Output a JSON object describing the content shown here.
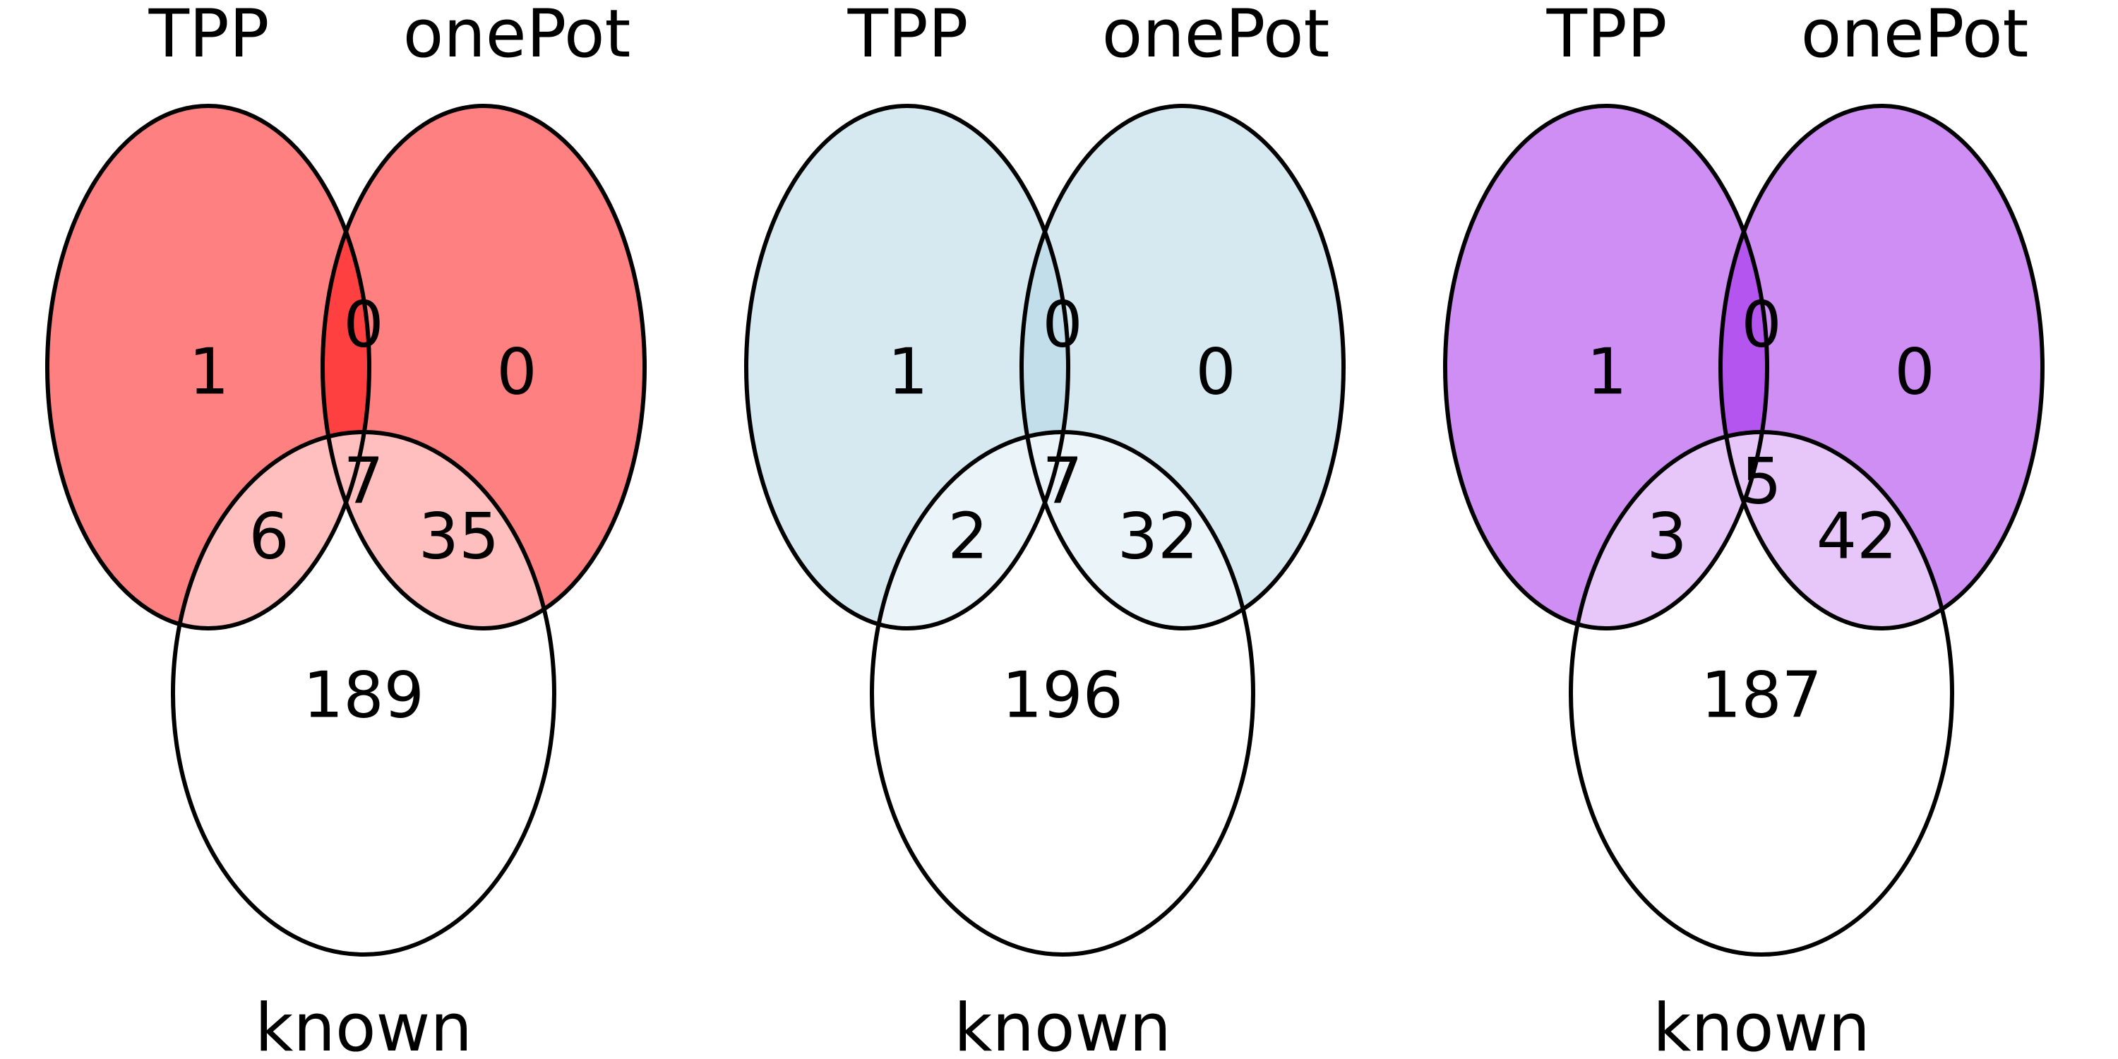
{
  "diagrams": [
    {
      "set_labels": {
        "a": "TPP",
        "b": "onePot",
        "c": "known"
      },
      "colors": {
        "a_only": "#ff8080",
        "ab": "#ff4040",
        "with_c": "#ffbfbf"
      },
      "counts": {
        "a_only": "1",
        "b_only": "0",
        "ab": "0",
        "ac": "6",
        "bc": "35",
        "abc": "7",
        "c_only": "189"
      }
    },
    {
      "set_labels": {
        "a": "TPP",
        "b": "onePot",
        "c": "known"
      },
      "colors": {
        "a_only": "#d6e9f0",
        "ab": "#c2deea",
        "with_c": "#ebf4f8"
      },
      "counts": {
        "a_only": "1",
        "b_only": "0",
        "ab": "0",
        "ac": "2",
        "bc": "32",
        "abc": "7",
        "c_only": "196"
      }
    },
    {
      "set_labels": {
        "a": "TPP",
        "b": "onePot",
        "c": "known"
      },
      "colors": {
        "a_only": "#cf8ef4",
        "ab": "#b555ef",
        "with_c": "#e7c6fa"
      },
      "counts": {
        "a_only": "1",
        "b_only": "0",
        "ab": "0",
        "ac": "3",
        "bc": "42",
        "abc": "5",
        "c_only": "187"
      }
    }
  ]
}
